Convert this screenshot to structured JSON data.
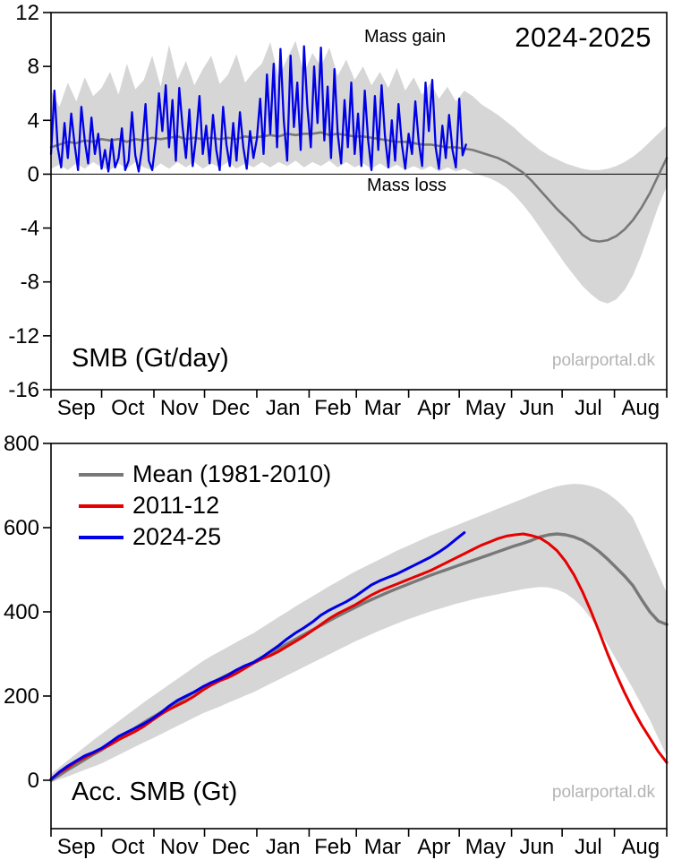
{
  "colors": {
    "band": "#d6d6d6",
    "mean": "#787878",
    "blue": "#0000e6",
    "red": "#e60000",
    "axis": "#000000",
    "watermark": "#b3b3b3"
  },
  "chart_data": [
    {
      "id": "smb-daily",
      "type": "line",
      "title": "2024-2025",
      "ylabel": "SMB (Gt/day)",
      "watermark": "polarportal.dk",
      "annotations": {
        "mass_gain": "Mass gain",
        "mass_loss": "Mass loss"
      },
      "ylim": [
        -16,
        12
      ],
      "yticks": [
        -16,
        -12,
        -8,
        -4,
        0,
        4,
        8,
        12
      ],
      "zero_line": true,
      "months": [
        "Sep",
        "Oct",
        "Nov",
        "Dec",
        "Jan",
        "Feb",
        "Mar",
        "Apr",
        "May",
        "Jun",
        "Jul",
        "Aug"
      ],
      "month_days": [
        30,
        31,
        30,
        31,
        31,
        28,
        31,
        30,
        31,
        30,
        31,
        31
      ],
      "band": {
        "name": "1981-2010 range",
        "step": 5,
        "start": 0,
        "upper": [
          6.2,
          5.0,
          6.8,
          5.4,
          7.2,
          5.8,
          6.4,
          7.6,
          5.9,
          8.2,
          6.3,
          7.0,
          8.8,
          6.5,
          9.6,
          7.0,
          8.4,
          6.6,
          7.8,
          8.8,
          6.7,
          7.4,
          8.9,
          6.8,
          7.6,
          8.2,
          9.8,
          7.2,
          8.6,
          9.9,
          7.5,
          9.0,
          8.0,
          9.4,
          7.3,
          8.5,
          7.0,
          8.0,
          6.6,
          7.6,
          6.4,
          7.9,
          6.2,
          7.2,
          5.9,
          6.8,
          5.6,
          6.5,
          5.4,
          6.2,
          5.8,
          5.2,
          4.8,
          4.4,
          3.9,
          3.4,
          2.8,
          2.3,
          1.8,
          1.4,
          1.1,
          0.8,
          0.6,
          0.4,
          0.3,
          0.3,
          0.4,
          0.6,
          0.9,
          1.3,
          1.8,
          2.4,
          3.0,
          3.6
        ],
        "lower": [
          0.4,
          0.7,
          0.3,
          0.8,
          0.4,
          0.9,
          0.5,
          0.3,
          0.8,
          0.4,
          0.9,
          0.5,
          0.3,
          0.8,
          0.4,
          0.9,
          0.5,
          0.9,
          0.4,
          0.8,
          0.5,
          0.9,
          0.4,
          0.8,
          0.5,
          0.9,
          0.5,
          0.9,
          0.6,
          1.0,
          0.5,
          0.9,
          0.6,
          1.0,
          0.5,
          0.9,
          0.5,
          0.8,
          0.4,
          0.8,
          0.4,
          0.7,
          0.3,
          0.6,
          0.3,
          0.6,
          0.2,
          0.5,
          0.2,
          0.4,
          0.1,
          -0.1,
          -0.3,
          -0.6,
          -1.0,
          -1.6,
          -2.3,
          -3.1,
          -4.0,
          -4.9,
          -5.8,
          -6.7,
          -7.5,
          -8.3,
          -8.9,
          -9.4,
          -9.6,
          -9.3,
          -8.6,
          -7.5,
          -6.0,
          -4.2,
          -2.4,
          -0.9
        ]
      },
      "series": [
        {
          "name": "mean-line-daily",
          "label": "Mean (1981-2010)",
          "color_key": "mean",
          "width": 2.6,
          "step": 5,
          "start": 0,
          "values": [
            2.0,
            2.2,
            2.4,
            2.3,
            2.5,
            2.4,
            2.6,
            2.5,
            2.6,
            2.4,
            2.6,
            2.5,
            2.7,
            2.6,
            2.7,
            2.8,
            2.6,
            2.7,
            2.6,
            2.7,
            2.6,
            2.7,
            2.6,
            2.8,
            2.7,
            2.8,
            2.9,
            2.8,
            3.0,
            2.9,
            3.0,
            3.0,
            3.1,
            2.9,
            3.0,
            2.9,
            2.8,
            2.8,
            2.7,
            2.6,
            2.5,
            2.4,
            2.4,
            2.3,
            2.2,
            2.2,
            2.1,
            2.0,
            2.0,
            1.9,
            1.8,
            1.6,
            1.4,
            1.2,
            0.9,
            0.5,
            0.1,
            -0.5,
            -1.2,
            -1.9,
            -2.6,
            -3.2,
            -3.8,
            -4.5,
            -4.9,
            -5.0,
            -4.9,
            -4.6,
            -4.1,
            -3.4,
            -2.5,
            -1.4,
            -0.1,
            1.2
          ]
        },
        {
          "name": "smb-2024-25-line",
          "label": "2024-25",
          "color_key": "blue",
          "width": 2.3,
          "step": 2,
          "start": 0,
          "values": [
            1.5,
            6.2,
            2.0,
            0.5,
            3.8,
            1.2,
            4.5,
            2.2,
            0.3,
            5.0,
            2.5,
            0.8,
            4.2,
            1.5,
            3.0,
            0.4,
            1.8,
            0.2,
            2.6,
            0.5,
            1.2,
            3.4,
            0.3,
            1.0,
            4.6,
            1.4,
            0.2,
            2.0,
            5.2,
            1.0,
            0.3,
            2.4,
            6.0,
            3.2,
            6.6,
            2.0,
            5.5,
            1.0,
            6.4,
            3.5,
            1.2,
            4.8,
            0.6,
            2.8,
            5.8,
            1.5,
            3.6,
            0.8,
            4.4,
            1.8,
            0.3,
            5.0,
            2.2,
            0.6,
            3.8,
            1.0,
            4.6,
            2.0,
            0.4,
            3.2,
            1.2,
            2.6,
            5.6,
            1.5,
            7.4,
            3.0,
            8.2,
            2.0,
            9.3,
            4.0,
            1.0,
            8.8,
            3.5,
            6.8,
            1.8,
            9.5,
            5.0,
            2.0,
            8.0,
            3.8,
            9.4,
            2.5,
            6.5,
            1.2,
            7.8,
            3.0,
            0.8,
            5.5,
            2.0,
            6.8,
            1.5,
            4.5,
            0.6,
            6.2,
            2.5,
            0.3,
            5.8,
            1.8,
            6.6,
            2.8,
            0.5,
            4.0,
            1.0,
            5.2,
            2.2,
            0.4,
            3.0,
            1.5,
            5.4,
            2.4,
            0.6,
            6.8,
            3.2,
            7.0,
            2.0,
            0.4,
            3.6,
            1.2,
            4.4,
            1.8,
            0.5,
            5.6,
            1.4,
            2.2
          ]
        }
      ]
    },
    {
      "id": "acc-smb",
      "type": "line",
      "title": "",
      "ylabel": "Acc. SMB (Gt)",
      "watermark": "polarportal.dk",
      "ylim": [
        -115,
        800
      ],
      "yticks": [
        0,
        200,
        400,
        600,
        800
      ],
      "zero_line": false,
      "months": [
        "Sep",
        "Oct",
        "Nov",
        "Dec",
        "Jan",
        "Feb",
        "Mar",
        "Apr",
        "May",
        "Jun",
        "Jul",
        "Aug"
      ],
      "month_days": [
        30,
        31,
        30,
        31,
        31,
        28,
        31,
        30,
        31,
        30,
        31,
        31
      ],
      "legend": [
        {
          "label": "Mean (1981-2010)",
          "color_key": "mean"
        },
        {
          "label": "2011-12",
          "color_key": "red"
        },
        {
          "label": "2024-25",
          "color_key": "blue"
        }
      ],
      "band": {
        "name": "1981-2010 range",
        "step": 5,
        "start": 0,
        "upper": [
          15,
          31,
          47,
          63,
          79,
          95,
          110,
          125,
          140,
          155,
          170,
          185,
          199,
          213,
          227,
          241,
          255,
          269,
          283,
          295,
          306,
          317,
          328,
          339,
          349,
          362,
          375,
          388,
          400,
          413,
          425,
          437,
          449,
          461,
          472,
          484,
          495,
          505,
          515,
          525,
          535,
          545,
          554,
          563,
          572,
          581,
          589,
          597,
          605,
          613,
          621,
          629,
          637,
          645,
          653,
          661,
          669,
          677,
          685,
          692,
          698,
          702,
          704,
          703,
          699,
          692,
          681,
          666,
          647,
          624,
          580,
          535,
          490,
          445
        ],
        "lower": [
          -5,
          2,
          9,
          17,
          25,
          32,
          40,
          50,
          60,
          70,
          80,
          90,
          99,
          109,
          119,
          129,
          139,
          149,
          159,
          167,
          175,
          184,
          192,
          201,
          209,
          219,
          229,
          239,
          249,
          259,
          269,
          279,
          289,
          299,
          309,
          319,
          329,
          338,
          347,
          356,
          364,
          372,
          380,
          387,
          394,
          401,
          407,
          413,
          419,
          424,
          429,
          434,
          438,
          442,
          446,
          450,
          454,
          457,
          459,
          458,
          453,
          444,
          430,
          410,
          385,
          355,
          322,
          287,
          252,
          217,
          180,
          143,
          100,
          58
        ]
      },
      "series": [
        {
          "name": "acc-mean-line",
          "label": "Mean (1981-2010)",
          "color_key": "mean",
          "width": 3.4,
          "step": 5,
          "start": 0,
          "values": [
            0,
            12,
            25,
            37,
            49,
            61,
            72,
            85,
            98,
            111,
            124,
            137,
            149,
            161,
            173,
            185,
            197,
            209,
            220,
            231,
            241,
            251,
            261,
            271,
            280,
            291,
            302,
            313,
            324,
            335,
            346,
            357,
            368,
            379,
            390,
            400,
            410,
            420,
            429,
            438,
            447,
            455,
            463,
            471,
            479,
            487,
            494,
            501,
            508,
            515,
            522,
            529,
            536,
            543,
            550,
            557,
            563,
            570,
            578,
            583,
            585,
            583,
            578,
            570,
            558,
            543,
            525,
            505,
            485,
            462,
            430,
            400,
            378,
            370
          ]
        },
        {
          "name": "acc-2011-12-line",
          "label": "2011-12",
          "color_key": "red",
          "width": 3.0,
          "step": 5,
          "start": 0,
          "values": [
            3,
            18,
            30,
            44,
            54,
            64,
            74,
            84,
            96,
            106,
            116,
            128,
            142,
            156,
            168,
            178,
            188,
            200,
            214,
            226,
            236,
            244,
            254,
            266,
            278,
            288,
            296,
            306,
            318,
            330,
            342,
            356,
            370,
            384,
            396,
            406,
            416,
            428,
            440,
            450,
            458,
            466,
            474,
            482,
            490,
            498,
            508,
            518,
            528,
            538,
            548,
            558,
            566,
            574,
            580,
            583,
            585,
            581,
            575,
            562,
            545,
            520,
            488,
            448,
            402,
            352,
            300,
            252,
            208,
            168,
            132,
            100,
            68,
            42
          ]
        },
        {
          "name": "acc-2024-25-line",
          "label": "2024-25",
          "color_key": "blue",
          "width": 3.0,
          "step": 5,
          "start": 0,
          "values": [
            2,
            20,
            34,
            46,
            58,
            66,
            76,
            90,
            104,
            114,
            124,
            134,
            146,
            160,
            176,
            190,
            200,
            210,
            222,
            232,
            240,
            250,
            262,
            272,
            280,
            292,
            306,
            320,
            336,
            350,
            362,
            376,
            392,
            404,
            414,
            424,
            436,
            450,
            464,
            474,
            482,
            490,
            500,
            510,
            520,
            530,
            542,
            556,
            572,
            588
          ]
        }
      ]
    }
  ]
}
